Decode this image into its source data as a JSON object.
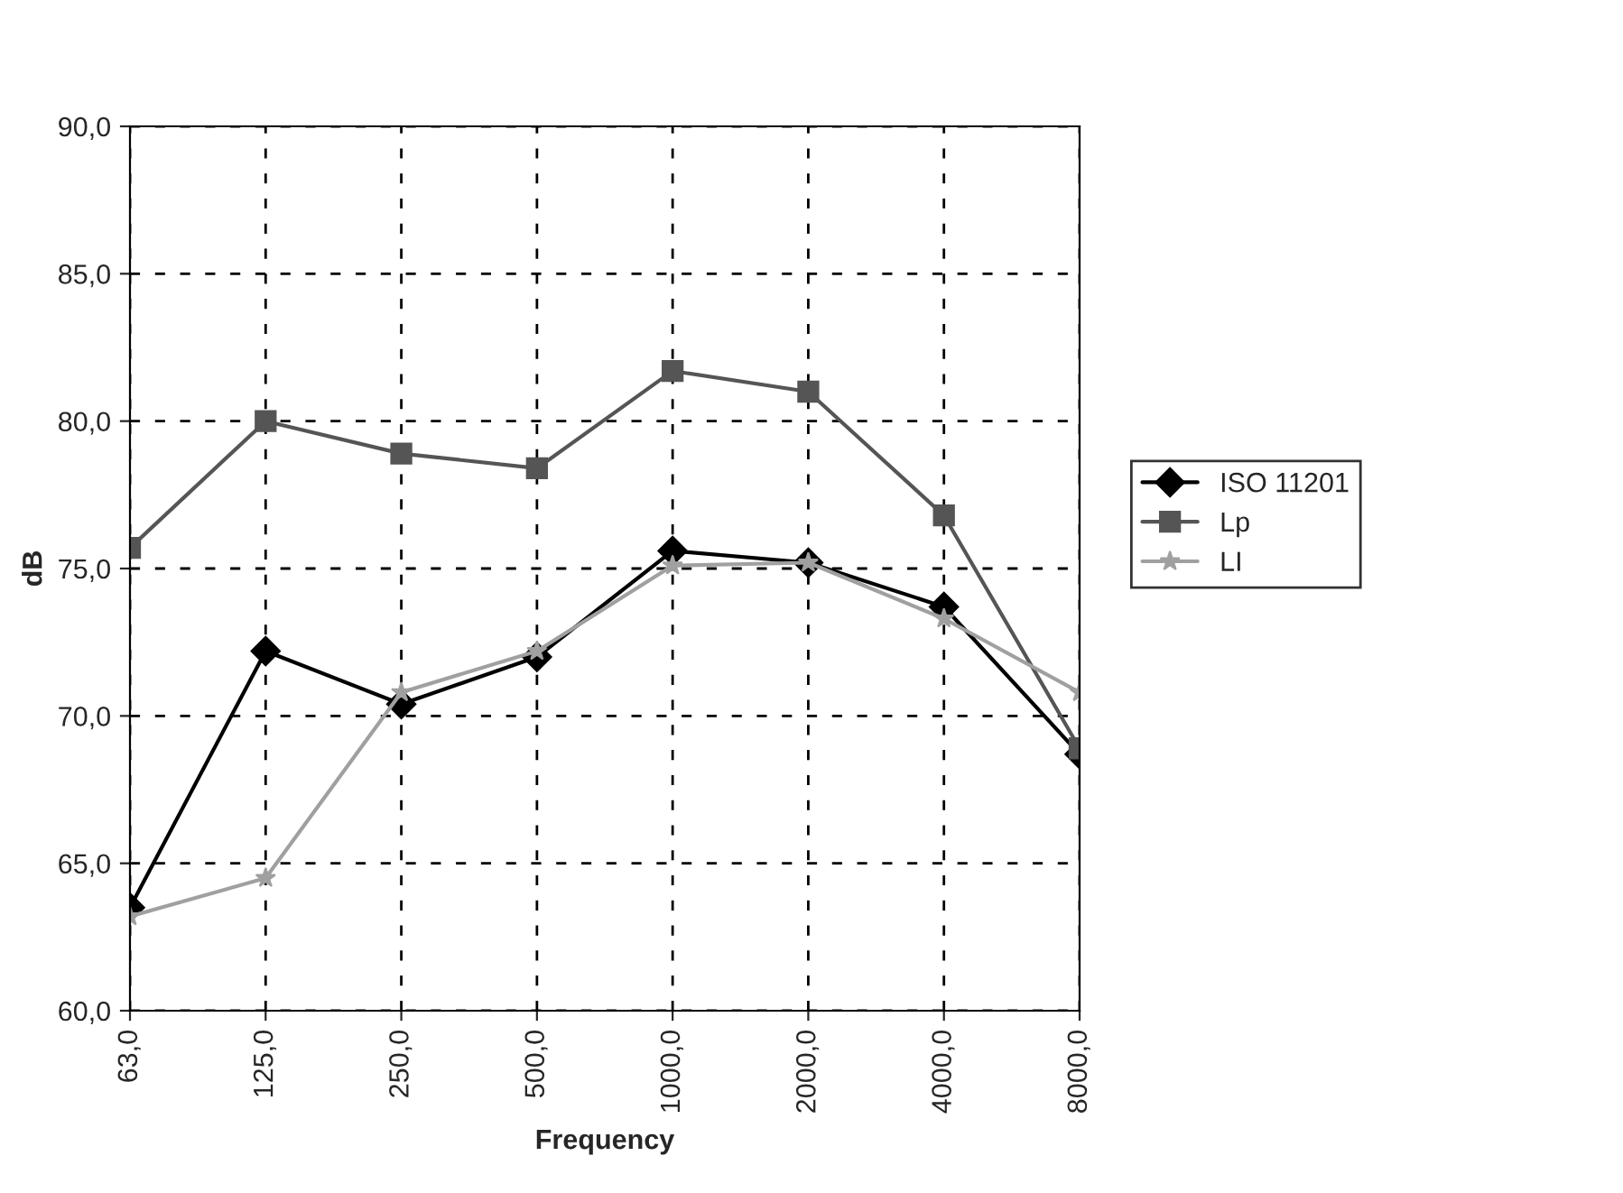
{
  "chart_data": {
    "type": "line",
    "xlabel": "Frequency",
    "ylabel": "dB",
    "categories": [
      "63,0",
      "125,0",
      "250,0",
      "500,0",
      "1000,0",
      "2000,0",
      "4000,0",
      "8000,0"
    ],
    "series": [
      {
        "name": "ISO 11201",
        "color": "#000000",
        "marker": "diamond",
        "values": [
          63.5,
          72.2,
          70.4,
          72.0,
          75.6,
          75.2,
          73.7,
          68.7
        ]
      },
      {
        "name": "Lp",
        "color": "#555555",
        "marker": "square",
        "values": [
          75.7,
          80.0,
          78.9,
          78.4,
          81.7,
          81.0,
          76.8,
          68.9
        ]
      },
      {
        "name": "LI",
        "color": "#a0a0a0",
        "marker": "star",
        "values": [
          63.2,
          64.5,
          70.8,
          72.2,
          75.1,
          75.2,
          73.3,
          70.8
        ]
      }
    ],
    "ylim": [
      60,
      90
    ],
    "yticks": [
      {
        "value": 60,
        "label": "60,0"
      },
      {
        "value": 65,
        "label": "65,0"
      },
      {
        "value": 70,
        "label": "70,0"
      },
      {
        "value": 75,
        "label": "75,0"
      },
      {
        "value": 80,
        "label": "80,0"
      },
      {
        "value": 85,
        "label": "85,0"
      },
      {
        "value": 90,
        "label": "90,0"
      }
    ],
    "grid": true,
    "legend": "right",
    "line_style": "solid"
  }
}
